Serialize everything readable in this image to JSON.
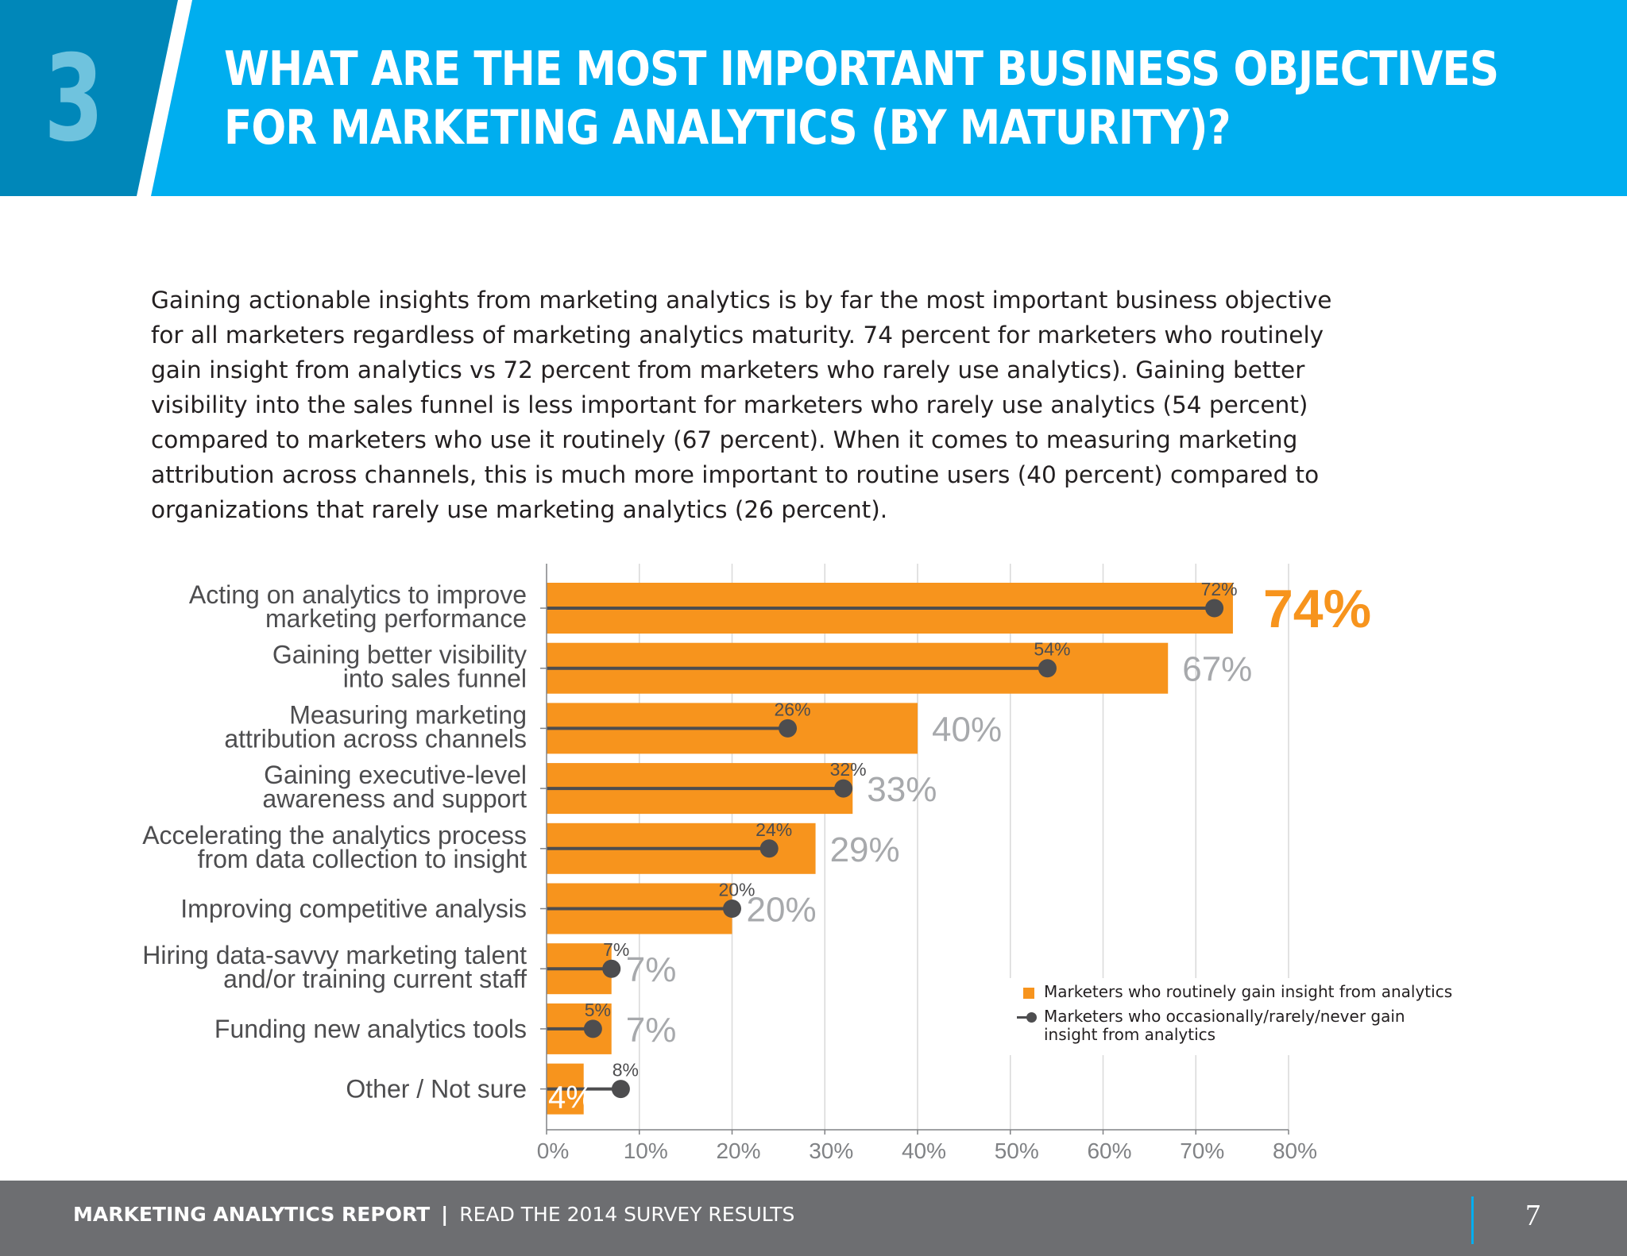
{
  "header": {
    "section_number": "3",
    "title_line1": "WHAT ARE THE MOST IMPORTANT BUSINESS OBJECTIVES",
    "title_line2": "FOR MARKETING ANALYTICS (BY MATURITY)?",
    "colors": {
      "band": "#00aeef",
      "tab": "#0087b9",
      "number": "#6fc3de"
    }
  },
  "intro": {
    "lines": [
      "Gaining actionable insights from marketing analytics is by far the most important business objective",
      "for all marketers regardless of marketing analytics maturity. 74 percent for marketers who routinely",
      "gain insight from analytics vs 72 percent from marketers who rarely use analytics). Gaining better",
      "visibility into the sales funnel is less important for marketers who rarely use analytics (54 percent)",
      "compared to marketers who use it routinely (67 percent). When it comes to measuring marketing",
      "attribution across channels, this is much more important to routine users (40 percent) compared to",
      "organizations that rarely use marketing analytics (26 percent)."
    ]
  },
  "chart_data": {
    "type": "bar",
    "orientation": "horizontal",
    "categories": [
      [
        "Acting on analytics to improve",
        "marketing performance"
      ],
      [
        "Gaining better visibility",
        "into sales funnel"
      ],
      [
        "Measuring marketing",
        "attribution across channels"
      ],
      [
        "Gaining executive-level",
        "awareness and support"
      ],
      [
        "Accelerating the analytics process",
        "from data collection to insight"
      ],
      [
        "Improving competitive analysis"
      ],
      [
        "Hiring data-savvy marketing talent",
        "and/or training current staff"
      ],
      [
        "Funding new analytics tools"
      ],
      [
        "Other / Not sure"
      ]
    ],
    "series": [
      {
        "name": "Marketers who routinely gain insight from analytics",
        "type": "bar",
        "color": "#f7941d",
        "values": [
          74,
          67,
          40,
          33,
          29,
          20,
          7,
          7,
          4
        ],
        "labels": [
          "74%",
          "67%",
          "40%",
          "33%",
          "29%",
          "20%",
          "7%",
          "7%",
          "4%"
        ]
      },
      {
        "name": "Marketers who occasionally/rarely/never gain insight from analytics",
        "type": "lollipop",
        "color": "#4d4d4f",
        "values": [
          72,
          54,
          26,
          32,
          24,
          20,
          7,
          5,
          8
        ],
        "labels": [
          "72%",
          "54%",
          "26%",
          "32%",
          "24%",
          "20%",
          "7%",
          "5%",
          "8%"
        ]
      }
    ],
    "xlim": [
      0,
      80
    ],
    "xticks": [
      0,
      10,
      20,
      30,
      40,
      50,
      60,
      70,
      80
    ],
    "xtick_labels": [
      "0%",
      "10%",
      "20%",
      "30%",
      "40%",
      "50%",
      "60%",
      "70%",
      "80%"
    ],
    "grid": true,
    "legend_position": "bottom-right",
    "highlight_color": "#f7941d",
    "label_color": "#a7a9ac"
  },
  "legend": {
    "routine": "Marketers who routinely gain insight from analytics",
    "rare": [
      "Marketers who occasionally/rarely/never gain",
      "insight from analytics"
    ]
  },
  "footer": {
    "report": "MARKETING ANALYTICS REPORT",
    "separator": "|",
    "tagline": "READ THE 2014 SURVEY RESULTS",
    "page": "7"
  }
}
